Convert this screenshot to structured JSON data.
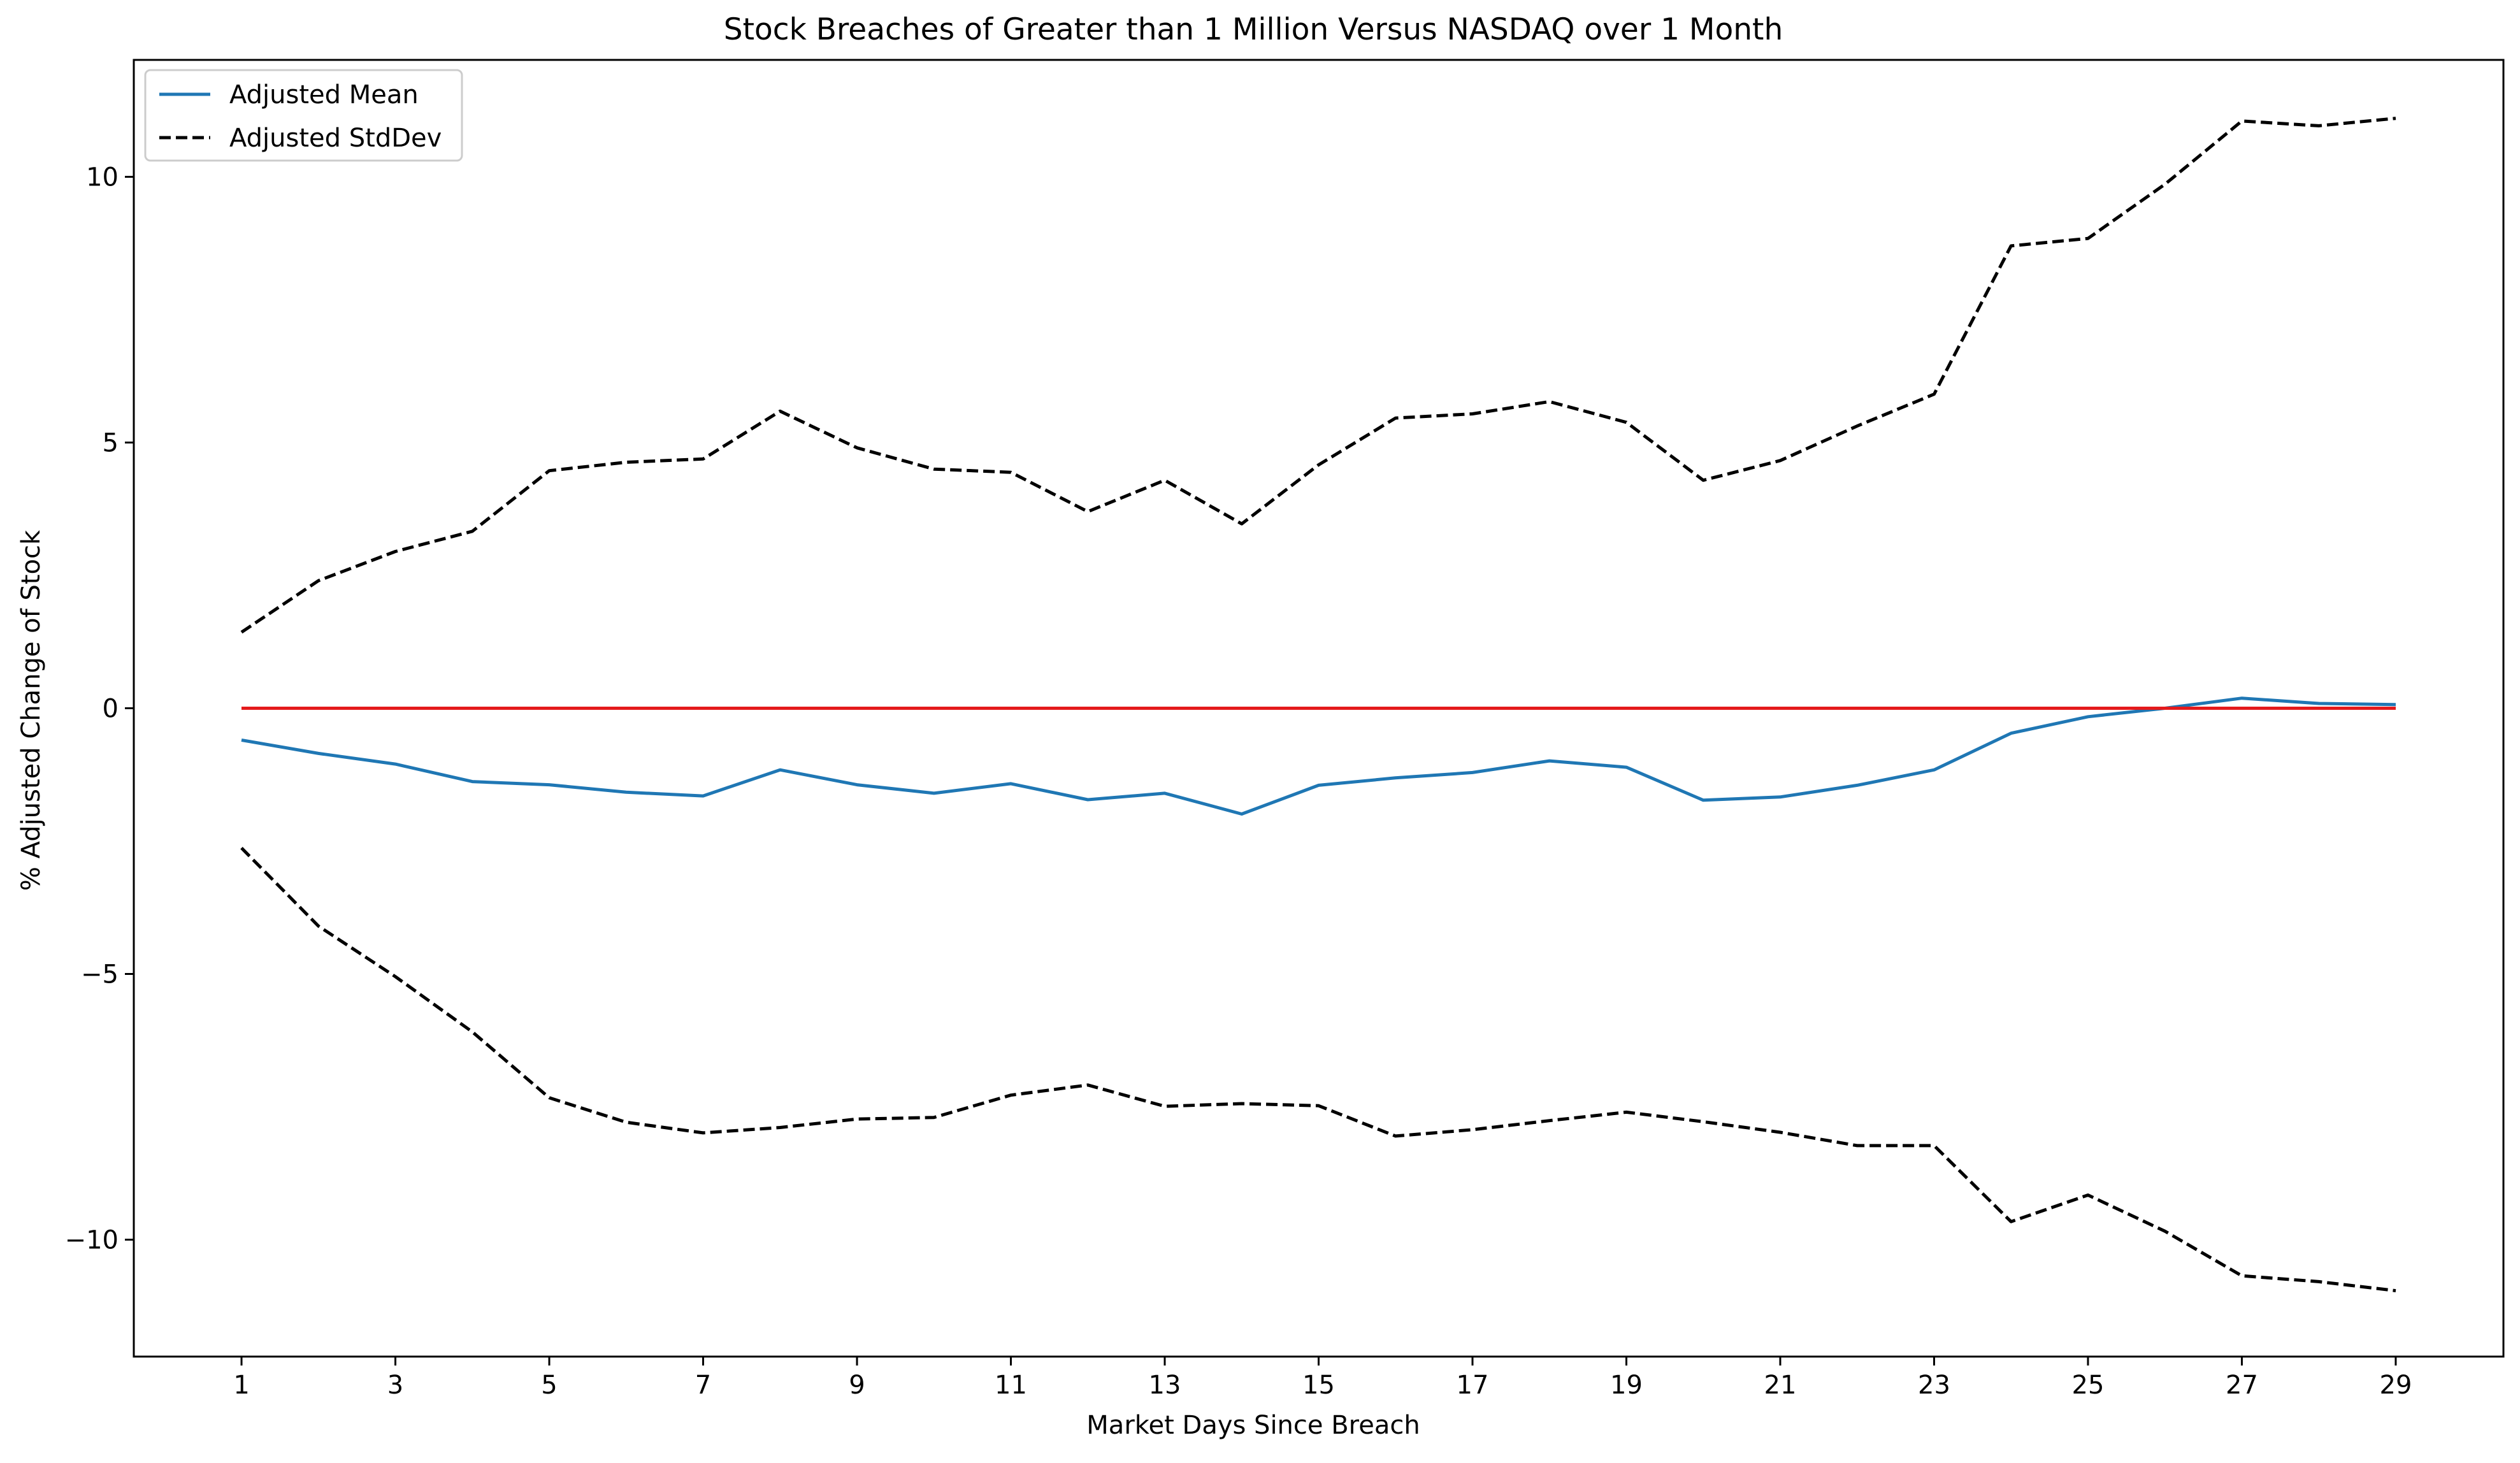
{
  "chart_data": {
    "type": "line",
    "title": "Stock Breaches of Greater than 1 Million Versus NASDAQ over 1 Month",
    "xlabel": "Market Days Since Breach",
    "ylabel": "% Adjusted Change of Stock",
    "xlim": [
      -0.4,
      30.4
    ],
    "ylim": [
      -12.2,
      12.2
    ],
    "x_ticks": [
      1,
      3,
      5,
      7,
      9,
      11,
      13,
      15,
      17,
      19,
      21,
      23,
      25,
      27,
      29
    ],
    "y_ticks": [
      -10,
      -5,
      0,
      5,
      10
    ],
    "y_tick_labels": [
      "−10",
      "−5",
      "0",
      "5",
      "10"
    ],
    "grid": false,
    "legend_position": "top-left",
    "x": [
      1,
      2,
      3,
      4,
      5,
      6,
      7,
      8,
      9,
      10,
      11,
      12,
      13,
      14,
      15,
      16,
      17,
      18,
      19,
      20,
      21,
      22,
      23,
      24,
      25,
      26,
      27,
      28,
      29
    ],
    "series": [
      {
        "name": "Adjusted Mean",
        "legend": true,
        "style": "solid",
        "color": "#1f77b4",
        "values": [
          -0.6,
          -0.85,
          -1.05,
          -1.38,
          -1.44,
          -1.58,
          -1.65,
          -1.16,
          -1.44,
          -1.6,
          -1.42,
          -1.72,
          -1.6,
          -1.99,
          -1.45,
          -1.31,
          -1.21,
          -0.99,
          -1.11,
          -1.73,
          -1.67,
          -1.45,
          -1.16,
          -0.47,
          -0.16,
          0.0,
          0.19,
          0.09,
          0.07
        ]
      },
      {
        "name": "Adjusted StdDev",
        "legend": true,
        "style": "dashed",
        "color": "#000000",
        "values": [
          1.43,
          2.4,
          2.95,
          3.33,
          4.47,
          4.63,
          4.69,
          5.59,
          4.9,
          4.5,
          4.44,
          3.7,
          4.29,
          3.47,
          4.58,
          5.46,
          5.54,
          5.77,
          5.38,
          4.29,
          4.66,
          5.31,
          5.91,
          8.7,
          8.84,
          9.86,
          11.05,
          10.96,
          11.1
        ]
      },
      {
        "legend": false,
        "style": "dashed",
        "color": "#000000",
        "values": [
          -2.63,
          -4.1,
          -5.05,
          -6.09,
          -7.33,
          -7.79,
          -7.99,
          -7.89,
          -7.73,
          -7.7,
          -7.28,
          -7.09,
          -7.49,
          -7.44,
          -7.48,
          -8.05,
          -7.93,
          -7.76,
          -7.6,
          -7.78,
          -7.98,
          -8.23,
          -8.23,
          -9.66,
          -9.16,
          -9.84,
          -10.68,
          -10.79,
          -10.96
        ]
      },
      {
        "legend": false,
        "style": "solid",
        "color": "#e41a1c",
        "values": [
          0,
          0,
          0,
          0,
          0,
          0,
          0,
          0,
          0,
          0,
          0,
          0,
          0,
          0,
          0,
          0,
          0,
          0,
          0,
          0,
          0,
          0,
          0,
          0,
          0,
          0,
          0,
          0,
          0
        ]
      }
    ]
  }
}
